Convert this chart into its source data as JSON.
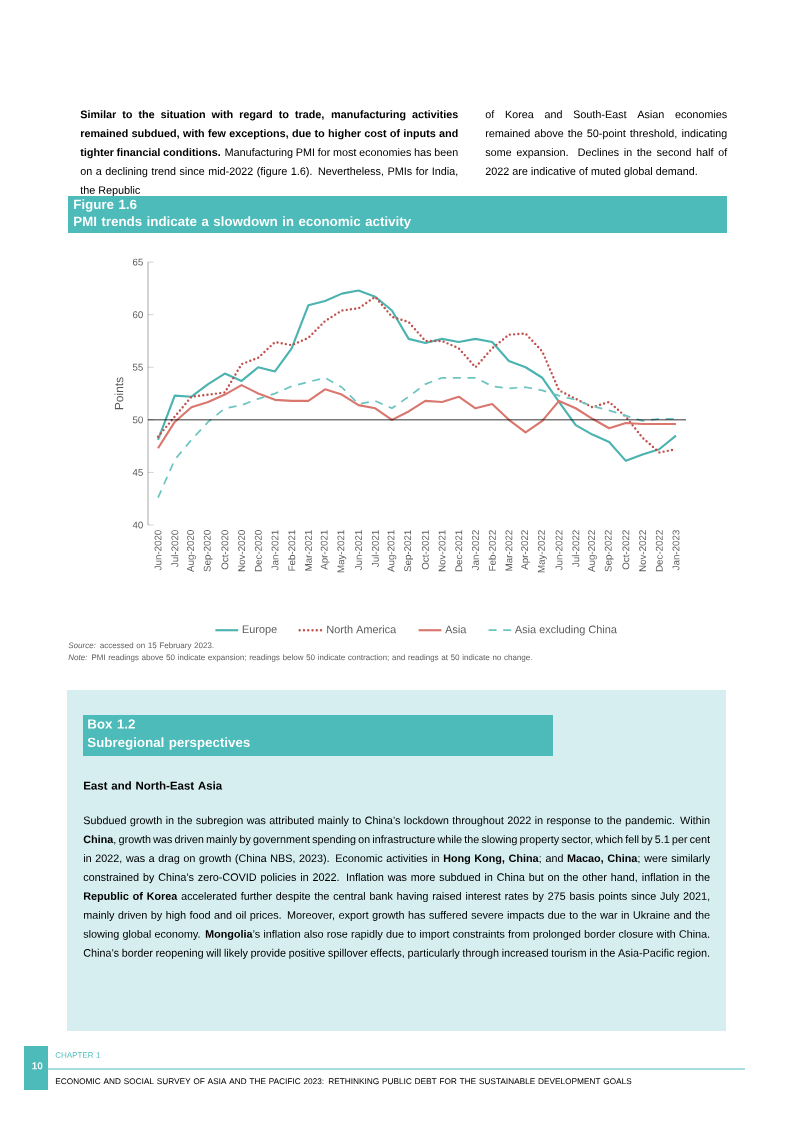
{
  "chart_data": {
    "type": "line",
    "title": "Figure 1.6",
    "subtitle": "PMI trends indicate a slowdown in economic activity",
    "ylabel": "Points",
    "categories": [
      "Jun-2020",
      "Jul-2020",
      "Aug-2020",
      "Sep-2020",
      "Oct-2020",
      "Nov-2020",
      "Dec-2020",
      "Jan-2021",
      "Feb-2021",
      "Mar-2021",
      "Apr-2021",
      "May-2021",
      "Jun-2021",
      "Jul-2021",
      "Aug-2021",
      "Sep-2021",
      "Oct-2021",
      "Nov-2021",
      "Dec-2021",
      "Jan-2022",
      "Feb-2022",
      "Mar-2022",
      "Apr-2022",
      "May-2022",
      "Jun-2022",
      "Jul-2022",
      "Aug-2022",
      "Sep-2022",
      "Oct-2022",
      "Nov-2022",
      "Dec-2022",
      "Jan-2023"
    ],
    "series": [
      {
        "name": "Europe",
        "color": "#4bb3b0",
        "line_style": "solid",
        "values": [
          48.1,
          52.3,
          52.2,
          53.4,
          54.4,
          53.7,
          55.0,
          54.6,
          56.8,
          60.9,
          61.3,
          62.0,
          62.3,
          61.7,
          60.4,
          57.7,
          57.3,
          57.7,
          57.4,
          57.7,
          57.4,
          55.6,
          55.0,
          54.0,
          51.7,
          49.5,
          48.6,
          47.9,
          46.1,
          46.7,
          47.2,
          48.5
        ]
      },
      {
        "name": "North America",
        "color": "#c0504d",
        "line_style": "dotted",
        "values": [
          48.4,
          50.3,
          52.2,
          52.4,
          52.6,
          55.3,
          55.9,
          57.4,
          57.1,
          57.8,
          59.4,
          60.4,
          60.6,
          61.7,
          59.8,
          59.3,
          57.5,
          57.5,
          56.8,
          55.0,
          56.8,
          58.1,
          58.2,
          56.5,
          52.8,
          52.0,
          51.2,
          51.7,
          50.3,
          48.3,
          46.9,
          47.2
        ]
      },
      {
        "name": "Asia",
        "color": "#d9776f",
        "line_style": "solid",
        "values": [
          47.3,
          49.8,
          51.2,
          51.7,
          52.4,
          53.3,
          52.5,
          51.9,
          51.8,
          51.8,
          52.9,
          52.4,
          51.4,
          51.1,
          50.0,
          50.8,
          51.8,
          51.7,
          52.2,
          51.1,
          51.5,
          50.0,
          48.8,
          49.9,
          51.8,
          51.1,
          50.1,
          49.2,
          49.7,
          49.6,
          49.6,
          49.6
        ]
      },
      {
        "name": "Asia excluding China",
        "color": "#6cc4c1",
        "line_style": "dashed",
        "values": [
          42.6,
          46.2,
          48.1,
          49.8,
          51.1,
          51.4,
          52.0,
          52.5,
          53.2,
          53.6,
          54.0,
          53.1,
          51.5,
          51.8,
          51.1,
          52.2,
          53.4,
          54.0,
          54.0,
          54.0,
          53.2,
          53.0,
          53.1,
          52.8,
          52.3,
          51.9,
          51.3,
          50.9,
          50.4,
          49.9,
          50.1,
          50.1
        ]
      }
    ],
    "ylim": [
      40,
      65
    ],
    "yticks": [
      40,
      45,
      50,
      55,
      60,
      65
    ],
    "ref_lines": [
      {
        "axis": "y",
        "value": 50
      }
    ],
    "legend": "bottom",
    "annotations": [
      "**Similar to the situation with regard to trade, manufacturing activities remained subdued, with few exceptions, due to higher cost of inputs and tighter financial conditions.** Manufacturing PMI for most economies has been on a declining trend since mid-2022 (figure 1.6). Nevertheless, PMIs for India, the Republic",
      "of Korea and South-East Asian economies remained above the 50-point threshold, indicating some expansion. Declines in the second half of 2022 are indicative of muted global demand.",
      "*Source:* accessed on 15 February 2023.",
      "*Note:* PMI readings above 50 indicate expansion; readings below 50 indicate contraction; and readings at 50 indicate no change.",
      "Box 1.2",
      "Subregional perspectives",
      "East and North-East Asia",
      "Subdued growth in the subregion was attributed mainly to China’s lockdown throughout 2022 in response to the pandemic. Within **China**, growth was driven mainly by government spending on infrastructure while the slowing property sector, which fell by 5.1 per cent in 2022, was a drag on growth (China NBS, 2023). Economic activities in **Hong Kong, China**; and **Macao, China**; were similarly constrained by China’s zero-COVID policies in 2022. Inflation was more subdued in China but on the other hand, inflation in the **Republic of Korea** accelerated further despite the central bank having raised interest rates by 275 basis points since July 2021, mainly driven by high food and oil prices. Moreover, export growth has suffered severe impacts due to the war in Ukraine and the slowing global economy. **Mongolia**’s inflation also rose rapidly due to import constraints from prolonged border closure with China. China’s border reopening will likely provide positive spillover effects, particularly through increased tourism in the Asia-Pacific region.",
      "10",
      "CHAPTER 1",
      "ECONOMIC AND SOCIAL SURVEY OF ASIA AND THE PACIFIC 2023: RETHINKING PUBLIC DEBT FOR THE SUSTAINABLE DEVELOPMENT GOALS"
    ]
  }
}
